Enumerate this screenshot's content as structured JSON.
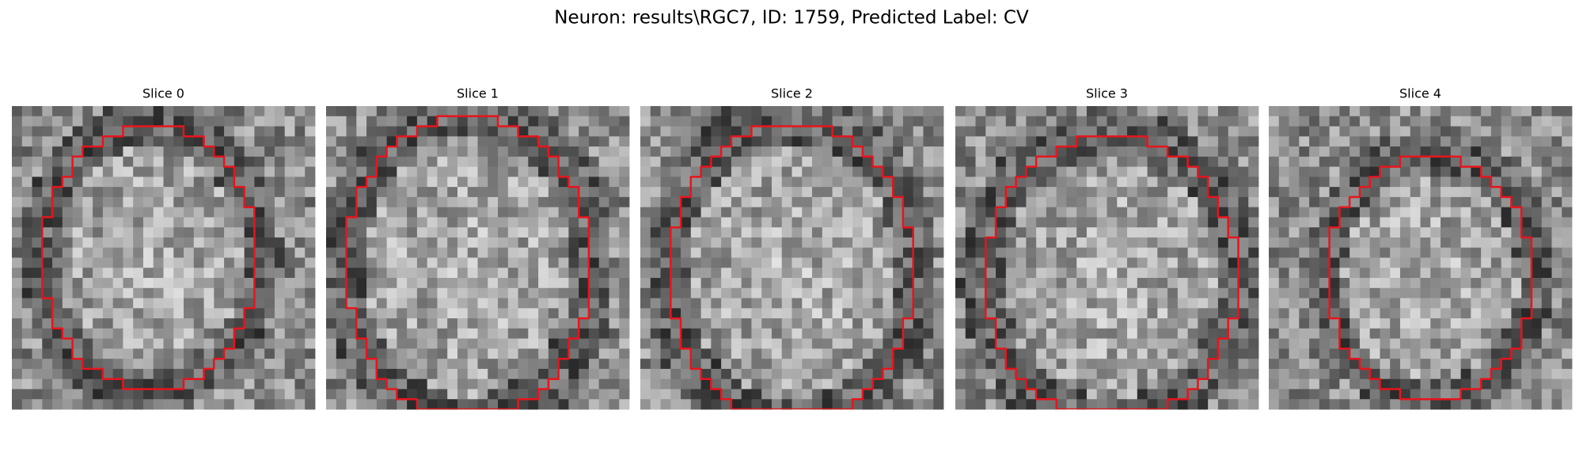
{
  "title": "Neuron: results\\RGC7, ID: 1759, Predicted Label: CV",
  "panels": [
    {
      "title": "Slice 0"
    },
    {
      "title": "Slice 1"
    },
    {
      "title": "Slice 2"
    },
    {
      "title": "Slice 3"
    },
    {
      "title": "Slice 4"
    }
  ]
}
